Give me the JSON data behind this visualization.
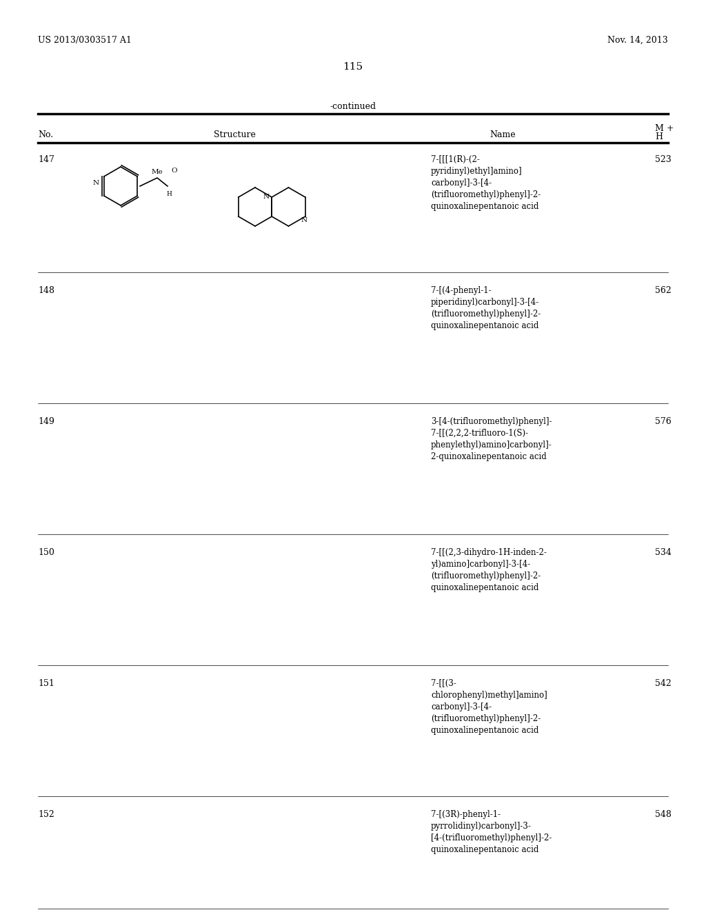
{
  "page_header_left": "US 2013/0303517 A1",
  "page_header_right": "Nov. 14, 2013",
  "page_number": "115",
  "continued_text": "-continued",
  "table_headers": [
    "No.",
    "Structure",
    "Name",
    "M +\nH"
  ],
  "rows": [
    {
      "no": "147",
      "name": "7-[[[1(R)-(2-\npyridinyl)ethyl]amino]\ncarbonyl]-3-[4-\n(trifluoromethyl)phenyl]-2-\nquinoxalinepentanoic acid",
      "mh": "523"
    },
    {
      "no": "148",
      "name": "7-[(4-phenyl-1-\npiperidinyl)carbonyl]-3-[4-\n(trifluoromethyl)phenyl]-2-\nquinoxalinepentanoic acid",
      "mh": "562"
    },
    {
      "no": "149",
      "name": "3-[4-(trifluoromethyl)phenyl]-\n7-[[(2,2,2-trifluoro-1(S)-\nphenylethyl)amino]carbonyl]-\n2-quinoxalinepentanoic acid",
      "mh": "576"
    },
    {
      "no": "150",
      "name": "7-[[(2,3-dihydro-1H-inden-2-\nyl)amino]carbonyl]-3-[4-\n(trifluoromethyl)phenyl]-2-\nquinoxalinepentanoic acid",
      "mh": "534"
    },
    {
      "no": "151",
      "name": "7-[[(3-\nchlorophenyl)methyl]amino]\ncarbonyl]-3-[4-\n(trifluoromethyl)phenyl]-2-\nquinoxalinepentanoic acid",
      "mh": "542"
    },
    {
      "no": "152",
      "name": "7-[(3R)-phenyl-1-\npyrrolidinyl)carbonyl]-3-\n[4-(trifluoromethyl)phenyl]-2-\nquinoxalinepentanoic acid",
      "mh": "548"
    }
  ],
  "bg_color": "#ffffff",
  "text_color": "#000000",
  "font_size_header": 9,
  "font_size_body": 8.5,
  "font_size_title": 10
}
